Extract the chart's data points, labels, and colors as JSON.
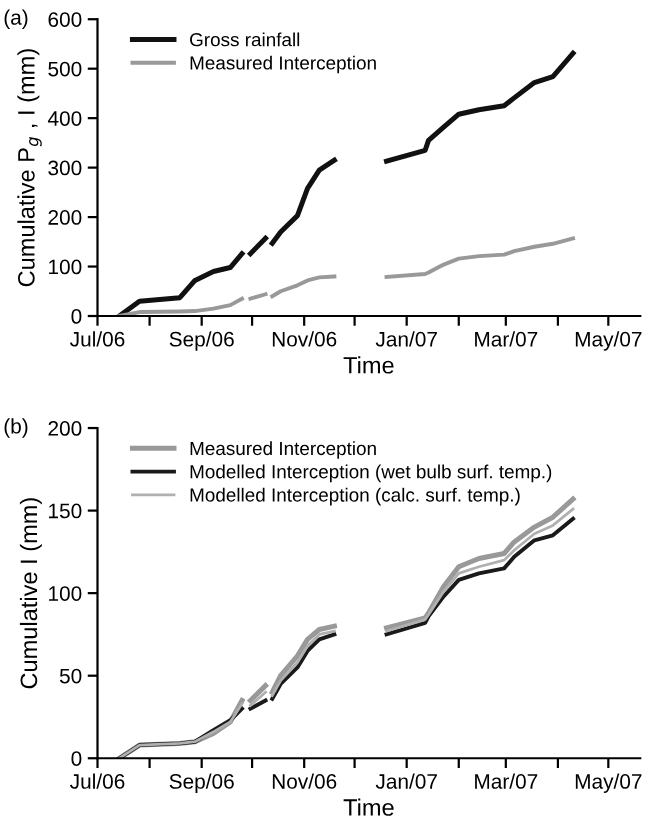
{
  "chart_data": [
    {
      "type": "line",
      "annotations": [
        "(a)"
      ],
      "xlabel": "Time",
      "ylabel": "Cumulative P$_{g}$ , I (mm)",
      "x": [
        "2006-07-14",
        "2006-07-26",
        "2006-08-19",
        "2006-08-28",
        "2006-09-08",
        "2006-09-18",
        "2006-09-25",
        "2006-09-27",
        "2006-09-30",
        "2006-10-09",
        "2006-10-11",
        "2006-10-13",
        "2006-10-18",
        "2006-10-28",
        "2006-11-03",
        "2006-11-10",
        "2006-11-19",
        "2006-12-05",
        "2006-12-20",
        "2007-01-12",
        "2007-01-14",
        "2007-01-23",
        "2007-02-01",
        "2007-02-13",
        "2007-02-28",
        "2007-03-06",
        "2007-03-18",
        "2007-03-29",
        "2007-04-10"
      ],
      "series": [
        {
          "name": "Gross rainfall",
          "color": "#111111",
          "values": [
            0,
            30,
            37,
            72,
            90,
            98,
            126,
            null,
            126,
            157,
            null,
            147,
            170,
            203,
            258,
            295,
            315,
            null,
            313,
            335,
            355,
            382,
            408,
            417,
            425,
            441,
            472,
            484,
            531
          ]
        },
        {
          "name": "Measured Interception",
          "color": "#999999",
          "values": [
            0,
            8,
            9,
            10,
            15,
            22,
            35,
            null,
            35,
            44,
            null,
            40,
            50,
            62,
            72,
            78,
            80,
            null,
            79,
            85,
            88,
            104,
            116,
            121,
            124,
            131,
            140,
            146,
            157
          ]
        }
      ],
      "xlim": [
        "2006-07-01",
        "2007-05-20"
      ],
      "xticks": [
        {
          "value": "2006-07-01",
          "label": "Jul/06"
        },
        {
          "value": "2006-08-01",
          "label": null
        },
        {
          "value": "2006-09-01",
          "label": "Sep/06"
        },
        {
          "value": "2006-10-01",
          "label": null
        },
        {
          "value": "2006-11-01",
          "label": "Nov/06"
        },
        {
          "value": "2006-12-01",
          "label": null
        },
        {
          "value": "2007-01-01",
          "label": "Jan/07"
        },
        {
          "value": "2007-02-01",
          "label": null
        },
        {
          "value": "2007-03-01",
          "label": "Mar/07"
        },
        {
          "value": "2007-04-01",
          "label": null
        },
        {
          "value": "2007-05-01",
          "label": "May/07"
        }
      ],
      "ylim": [
        0,
        600
      ],
      "yticks": [
        0,
        100,
        200,
        300,
        400,
        500,
        600
      ],
      "legend": "top left",
      "grid": false,
      "line_style": "solid",
      "marker": "none"
    },
    {
      "type": "line",
      "annotations": [
        "(b)"
      ],
      "xlabel": "Time",
      "ylabel": "Cumulative I (mm)",
      "x": [
        "2006-07-14",
        "2006-07-26",
        "2006-08-19",
        "2006-08-28",
        "2006-09-08",
        "2006-09-18",
        "2006-09-25",
        "2006-09-27",
        "2006-09-30",
        "2006-10-09",
        "2006-10-11",
        "2006-10-13",
        "2006-10-18",
        "2006-10-28",
        "2006-11-03",
        "2006-11-10",
        "2006-11-19",
        "2006-12-05",
        "2006-12-20",
        "2007-01-12",
        "2007-01-14",
        "2007-01-23",
        "2007-02-01",
        "2007-02-13",
        "2007-02-28",
        "2007-03-06",
        "2007-03-18",
        "2007-03-29",
        "2007-04-10"
      ],
      "series": [
        {
          "name": "Measured Interception",
          "color": "#999999",
          "values": [
            0,
            8,
            9,
            10,
            15,
            22,
            35,
            null,
            35,
            44,
            null,
            40,
            50,
            62,
            72,
            78,
            80,
            null,
            79,
            85,
            88,
            104,
            116,
            121,
            124,
            131,
            140,
            146,
            157
          ]
        },
        {
          "name": "Modelled Interception (wet bulb surf. temp.)",
          "color": "#1a1a1a",
          "values": [
            0,
            8,
            9,
            10,
            17,
            23,
            30,
            null,
            30,
            35,
            null,
            36,
            45,
            55,
            65,
            72,
            75,
            null,
            75,
            82,
            86,
            98,
            108,
            112,
            115,
            122,
            132,
            135,
            145
          ]
        },
        {
          "name": "Modelled Interception (calc. surf. temp.)",
          "color": "#b0b0b0",
          "values": [
            0,
            8,
            9,
            10,
            16,
            22,
            33,
            null,
            32,
            40,
            null,
            38,
            47,
            58,
            68,
            75,
            77,
            null,
            77,
            84,
            87,
            101,
            112,
            116,
            120,
            126,
            136,
            141,
            151
          ]
        }
      ],
      "xlim": [
        "2006-07-01",
        "2007-05-20"
      ],
      "xticks": [
        {
          "value": "2006-07-01",
          "label": "Jul/06"
        },
        {
          "value": "2006-08-01",
          "label": null
        },
        {
          "value": "2006-09-01",
          "label": "Sep/06"
        },
        {
          "value": "2006-10-01",
          "label": null
        },
        {
          "value": "2006-11-01",
          "label": "Nov/06"
        },
        {
          "value": "2006-12-01",
          "label": null
        },
        {
          "value": "2007-01-01",
          "label": "Jan/07"
        },
        {
          "value": "2007-02-01",
          "label": null
        },
        {
          "value": "2007-03-01",
          "label": "Mar/07"
        },
        {
          "value": "2007-04-01",
          "label": null
        },
        {
          "value": "2007-05-01",
          "label": "May/07"
        }
      ],
      "ylim": [
        0,
        200
      ],
      "yticks": [
        0,
        50,
        100,
        150,
        200
      ],
      "legend": "top left",
      "grid": false,
      "line_style": "solid",
      "marker": "none"
    }
  ]
}
